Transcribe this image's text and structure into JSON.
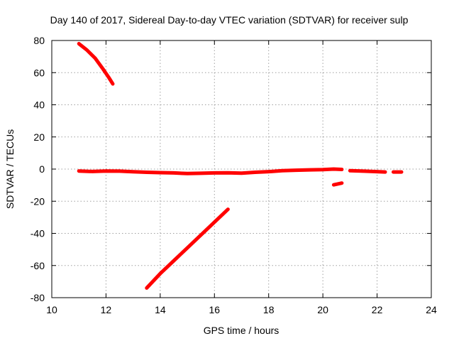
{
  "chart_data": {
    "type": "scatter",
    "title": "Day 140 of 2017, Sidereal Day-to-day VTEC variation (SDTVAR) for receiver sulp",
    "xlabel": "GPS time / hours",
    "ylabel": "SDTVAR / TECUs",
    "xlim": [
      10,
      24
    ],
    "ylim": [
      -80,
      80
    ],
    "xticks": [
      10,
      12,
      14,
      16,
      18,
      20,
      22,
      24
    ],
    "yticks": [
      -80,
      -60,
      -40,
      -20,
      0,
      20,
      40,
      60,
      80
    ],
    "grid": true,
    "series_color": "#ff0000",
    "series": [
      {
        "values": [
          [
            11.0,
            78
          ],
          [
            11.3,
            74
          ],
          [
            11.6,
            69
          ],
          [
            11.9,
            62
          ],
          [
            12.1,
            57
          ],
          [
            12.25,
            53
          ]
        ]
      },
      {
        "values": [
          [
            13.5,
            -74
          ],
          [
            14.0,
            -65
          ],
          [
            14.5,
            -57
          ],
          [
            15.0,
            -49
          ],
          [
            15.5,
            -41
          ],
          [
            16.0,
            -33
          ],
          [
            16.5,
            -25
          ]
        ]
      },
      {
        "values": [
          [
            11.0,
            -1.2
          ],
          [
            11.5,
            -1.5
          ],
          [
            12.0,
            -1.2
          ],
          [
            12.5,
            -1.3
          ],
          [
            13.0,
            -1.7
          ],
          [
            13.5,
            -2.0
          ],
          [
            14.0,
            -2.2
          ],
          [
            14.5,
            -2.4
          ],
          [
            15.0,
            -2.8
          ],
          [
            15.5,
            -2.6
          ],
          [
            16.0,
            -2.4
          ],
          [
            16.5,
            -2.3
          ],
          [
            17.0,
            -2.5
          ],
          [
            17.5,
            -2.0
          ],
          [
            18.0,
            -1.6
          ],
          [
            18.5,
            -1.0
          ],
          [
            19.0,
            -0.7
          ],
          [
            19.5,
            -0.5
          ],
          [
            20.0,
            -0.3
          ],
          [
            20.4,
            0.0
          ],
          [
            20.7,
            -0.2
          ]
        ]
      },
      {
        "values": [
          [
            20.4,
            -9.8
          ],
          [
            20.7,
            -8.7
          ]
        ]
      },
      {
        "values": [
          [
            21.0,
            -1.0
          ],
          [
            21.5,
            -1.3
          ],
          [
            22.0,
            -1.6
          ],
          [
            22.3,
            -1.8
          ]
        ]
      },
      {
        "values": [
          [
            22.6,
            -1.8
          ],
          [
            22.9,
            -1.8
          ]
        ]
      }
    ]
  }
}
